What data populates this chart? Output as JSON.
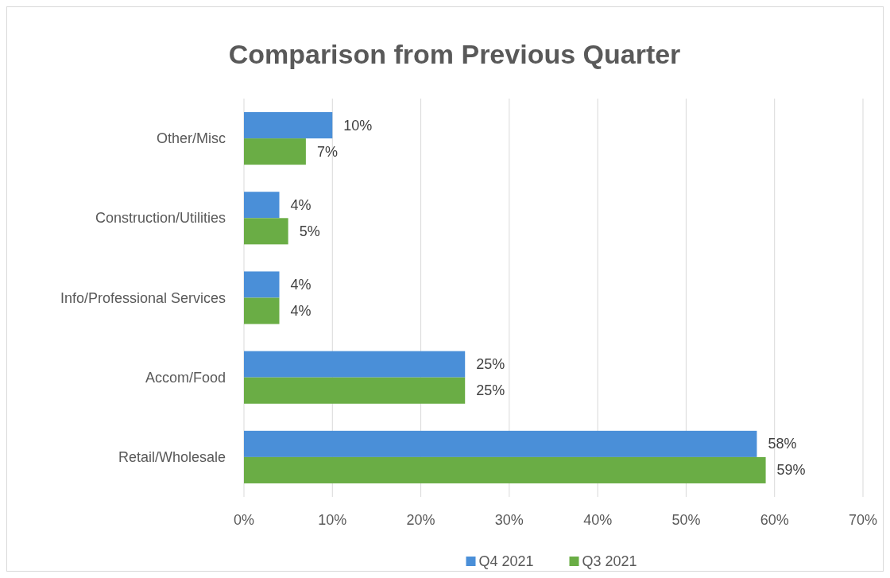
{
  "chart_data": {
    "type": "bar",
    "orientation": "horizontal",
    "title": "Comparison from Previous Quarter",
    "categories": [
      "Other/Misc",
      "Construction/Utilities",
      "Info/Professional Services",
      "Accom/Food",
      "Retail/Wholesale"
    ],
    "series": [
      {
        "name": "Q4 2021",
        "color": "#4a8fd8",
        "values": [
          10,
          4,
          4,
          25,
          58
        ],
        "value_labels": [
          "10%",
          "4%",
          "4%",
          "25%",
          "58%"
        ]
      },
      {
        "name": "Q3 2021",
        "color": "#6aad45",
        "values": [
          7,
          5,
          4,
          25,
          59
        ],
        "value_labels": [
          "7%",
          "5%",
          "4%",
          "25%",
          "59%"
        ]
      }
    ],
    "xlim": [
      0,
      70
    ],
    "xticks": [
      {
        "value": 0,
        "label": "0%"
      },
      {
        "value": 10,
        "label": "10%"
      },
      {
        "value": 20,
        "label": "20%"
      },
      {
        "value": 30,
        "label": "30%"
      },
      {
        "value": 40,
        "label": "40%"
      },
      {
        "value": 50,
        "label": "50%"
      },
      {
        "value": 60,
        "label": "60%"
      },
      {
        "value": 70,
        "label": "70%"
      }
    ],
    "grid": "x",
    "legend": "bottom"
  }
}
